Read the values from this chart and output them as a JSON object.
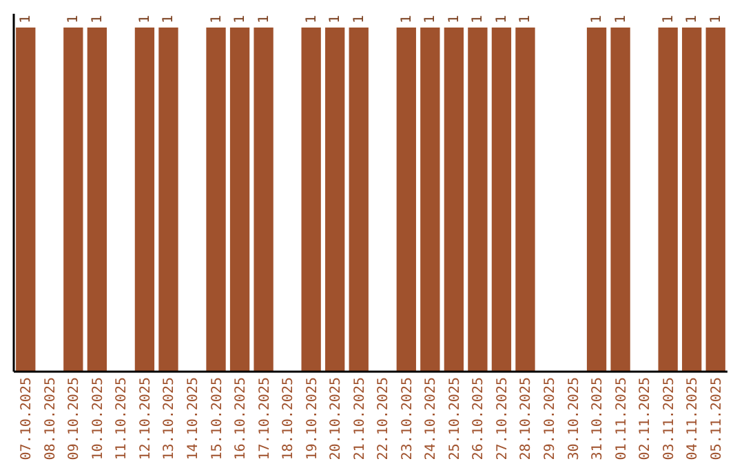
{
  "chart_data": {
    "type": "bar",
    "categories": [
      "07.10.2025",
      "08.10.2025",
      "09.10.2025",
      "10.10.2025",
      "11.10.2025",
      "12.10.2025",
      "13.10.2025",
      "14.10.2025",
      "15.10.2025",
      "16.10.2025",
      "17.10.2025",
      "18.10.2025",
      "19.10.2025",
      "20.10.2025",
      "21.10.2025",
      "22.10.2025",
      "23.10.2025",
      "24.10.2025",
      "25.10.2025",
      "26.10.2025",
      "27.10.2025",
      "28.10.2025",
      "29.10.2025",
      "30.10.2025",
      "31.10.2025",
      "01.11.2025",
      "02.11.2025",
      "03.11.2025",
      "04.11.2025",
      "05.11.2025"
    ],
    "values": [
      1,
      null,
      1,
      1,
      null,
      1,
      1,
      null,
      1,
      1,
      1,
      null,
      1,
      1,
      1,
      null,
      1,
      1,
      1,
      1,
      1,
      1,
      null,
      null,
      1,
      1,
      null,
      1,
      1,
      1
    ],
    "color": "#a0522d",
    "data_labels": true,
    "tick_labels": "x"
  }
}
